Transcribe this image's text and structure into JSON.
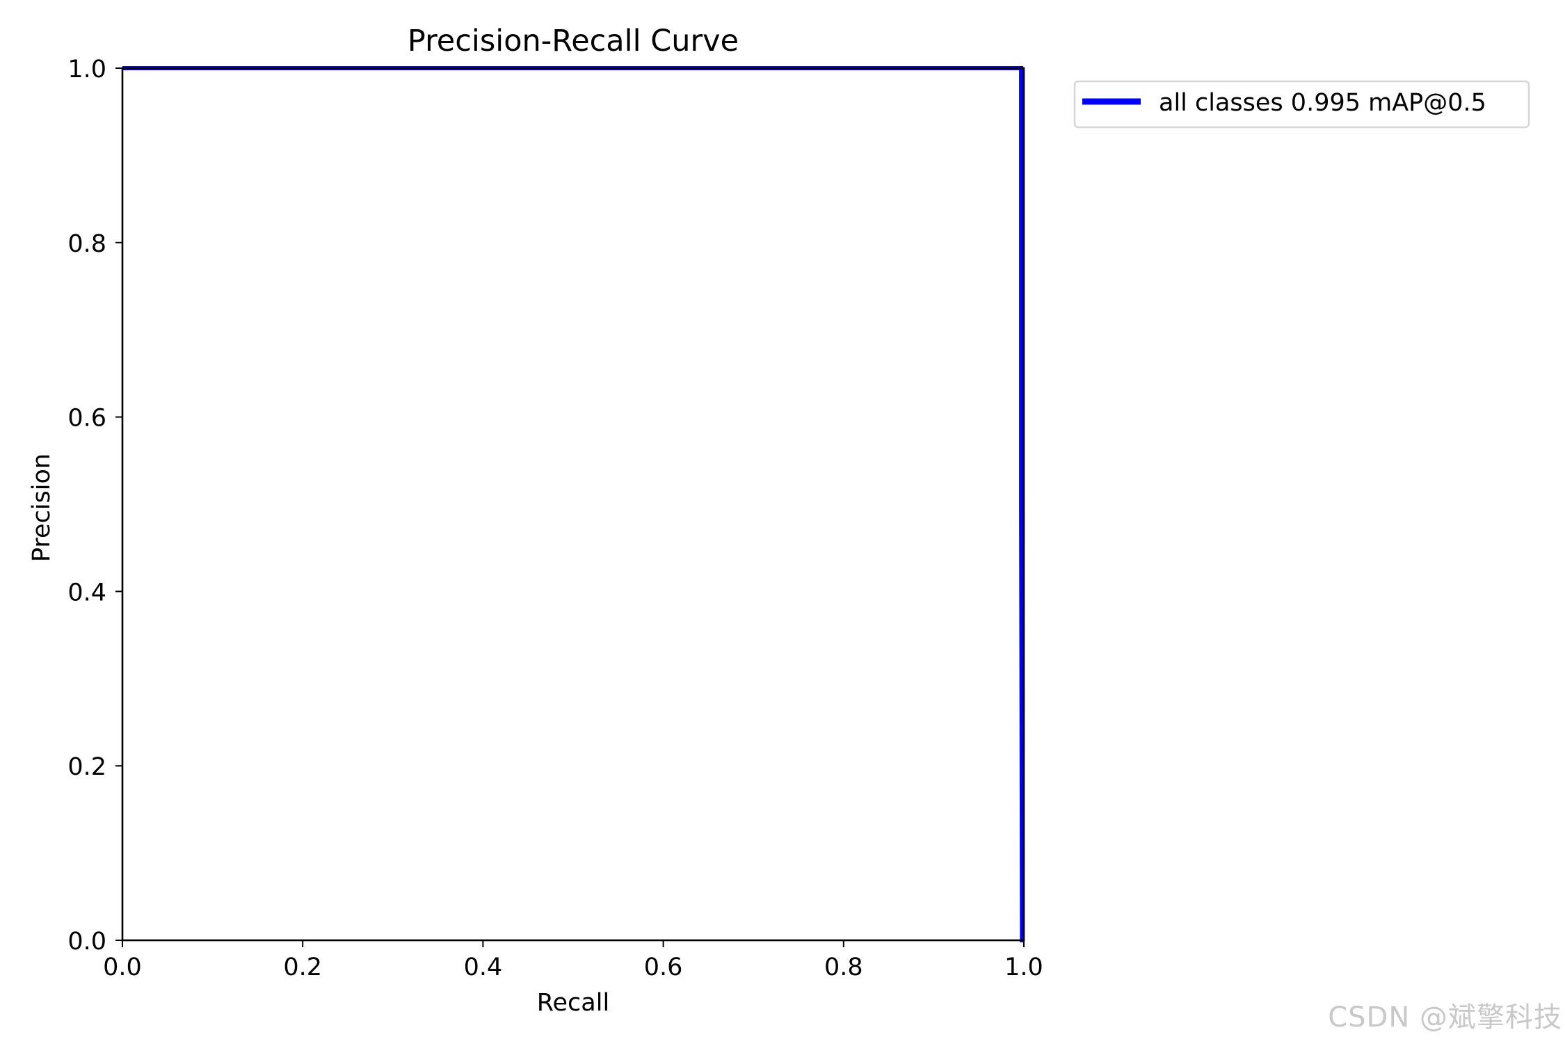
{
  "chart_data": {
    "type": "line",
    "title": "Precision-Recall Curve",
    "xlabel": "Recall",
    "ylabel": "Precision",
    "xlim": [
      0,
      1
    ],
    "ylim": [
      0,
      1
    ],
    "xticks": [
      0,
      0.2,
      0.4,
      0.6,
      0.8,
      1.0
    ],
    "yticks": [
      0,
      0.2,
      0.4,
      0.6,
      0.8,
      1.0
    ],
    "xtick_labels": [
      "0.0",
      "0.2",
      "0.4",
      "0.6",
      "0.8",
      "1.0"
    ],
    "ytick_labels": [
      "0.0",
      "0.2",
      "0.4",
      "0.6",
      "0.8",
      "1.0"
    ],
    "grid": false,
    "legend_placement": "outside-top-right",
    "series": [
      {
        "name": "all classes 0.995 mAP@0.5",
        "color": "#0000ff",
        "x": [
          0.0,
          0.997,
          0.997,
          0.998,
          1.0
        ],
        "y": [
          1.0,
          1.0,
          0.5,
          0.0,
          0.0
        ]
      }
    ]
  },
  "watermark": "CSDN @斌擎科技"
}
